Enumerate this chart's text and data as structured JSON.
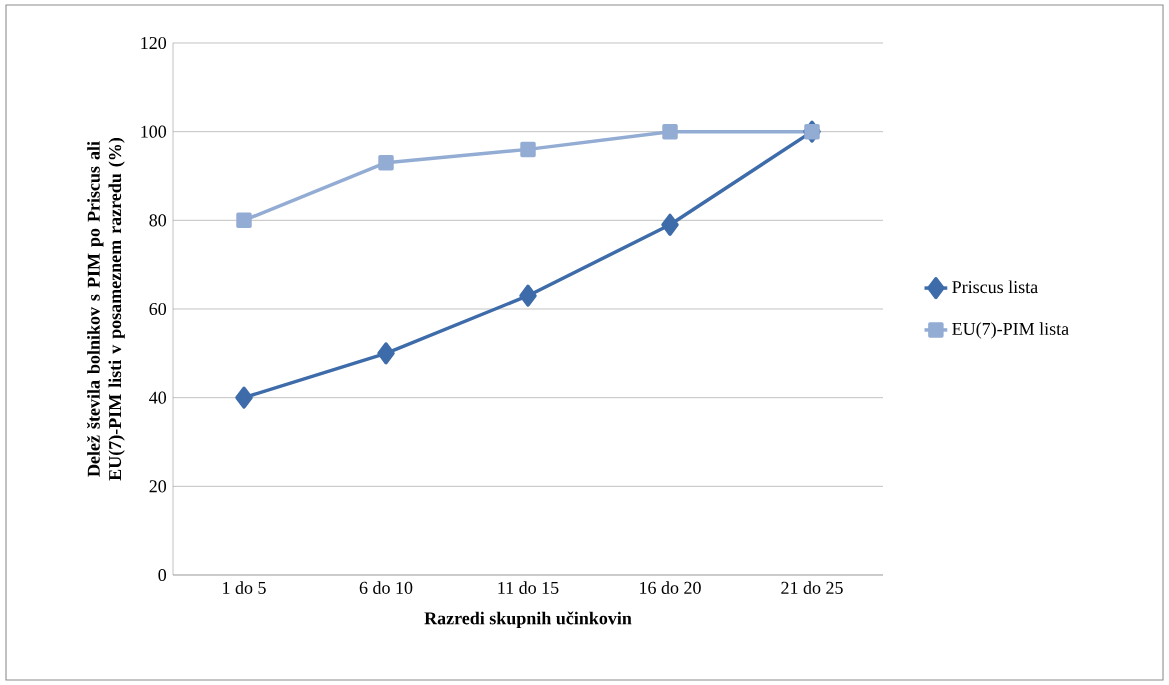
{
  "chart_data": {
    "type": "line",
    "xlabel": "Razredi skupnih  učinkovin",
    "ylabel": "Delež števila bolnikov s PIM po Priscus ali EU(7)-PIM listi v posameznem razredu (%)",
    "categories": [
      "1 do 5",
      "6 do 10",
      "11 do 15",
      "16 do 20",
      "21 do 25"
    ],
    "series": [
      {
        "name": "Priscus lista",
        "color": "#3e6ba9",
        "marker": "diamond",
        "values": [
          40,
          50,
          63,
          79,
          100
        ]
      },
      {
        "name": "EU(7)-PIM lista",
        "color": "#93acd4",
        "marker": "square",
        "values": [
          80,
          93,
          96,
          100,
          100
        ]
      }
    ],
    "ylim": [
      0,
      120
    ],
    "yticks": [
      0,
      20,
      40,
      60,
      80,
      100,
      120
    ],
    "grid": "y",
    "legend": "right",
    "line_style": "solid"
  }
}
